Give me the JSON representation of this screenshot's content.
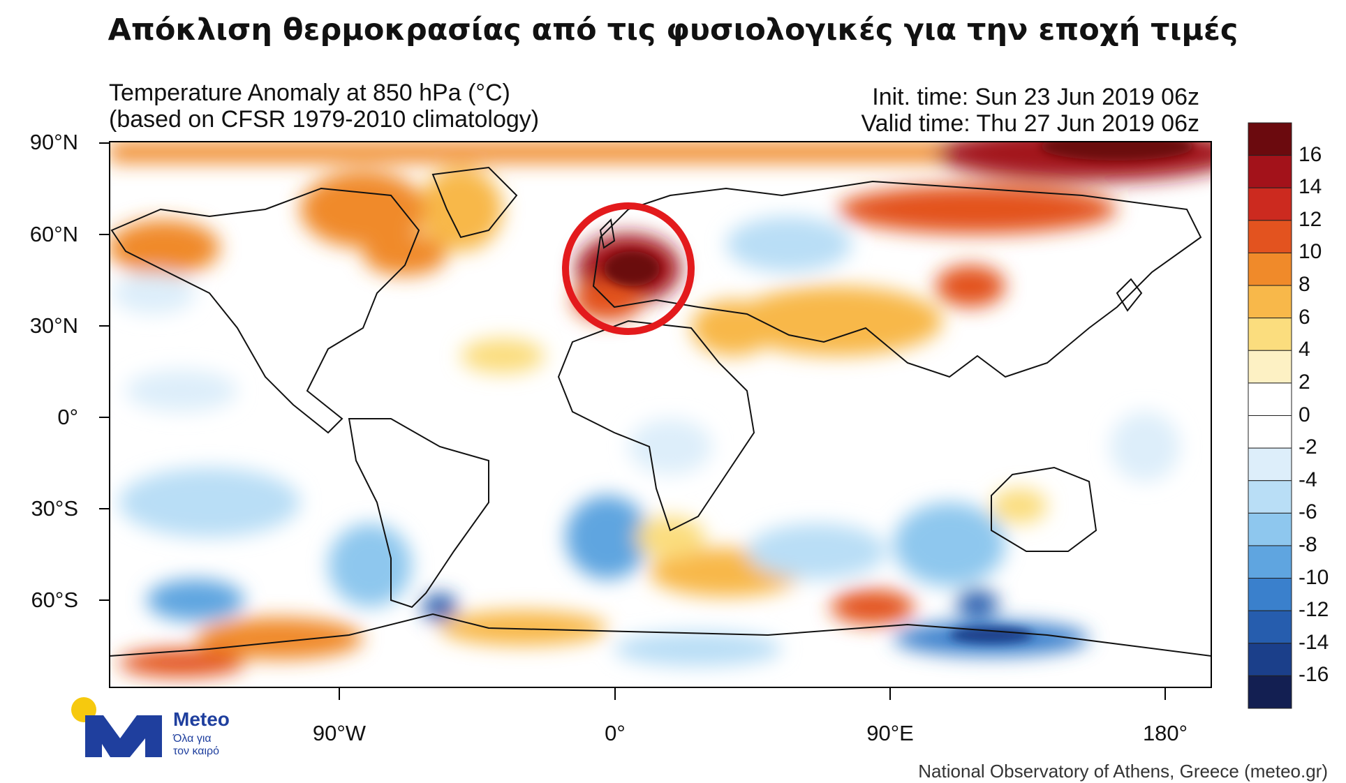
{
  "header": {
    "title": "Απόκλιση θερμοκρασίας από τις φυσιολογικές για την εποχή τιμές"
  },
  "map": {
    "title_line1": "Temperature Anomaly at 850 hPa (°C)",
    "title_line2": "(based on CFSR 1979-2010 climatology)",
    "init_time": "Init. time: Sun 23 Jun 2019 06z",
    "valid_time": "Valid time: Thu 27 Jun 2019 06z",
    "lat_labels": [
      "90°N",
      "60°N",
      "30°N",
      "0°",
      "30°S",
      "60°S"
    ],
    "lon_labels": [
      "90°W",
      "0°",
      "90°E",
      "180°"
    ],
    "highlight": "Western Europe heat anomaly"
  },
  "colorbar": {
    "labels": [
      "16",
      "14",
      "12",
      "10",
      "8",
      "6",
      "4",
      "2",
      "0",
      "-2",
      "-4",
      "-6",
      "-8",
      "-10",
      "-12",
      "-14",
      "-16"
    ],
    "colors": [
      "#6b0a0e",
      "#a3121a",
      "#cc2a1f",
      "#e3531f",
      "#f08a2a",
      "#f8b84a",
      "#fbdd7e",
      "#fdf1c4",
      "#ffffff",
      "#ffffff",
      "#ddeefa",
      "#b9def6",
      "#8ec7ee",
      "#5fa5e0",
      "#3a80cc",
      "#265dae",
      "#1b3f8a",
      "#131f52"
    ]
  },
  "branding": {
    "logo_name": "Meteo",
    "logo_tagline_1": "Όλα για",
    "logo_tagline_2": "τον καιρό",
    "credit": "National Observatory of Athens, Greece (meteo.gr)",
    "colors": {
      "logo_blue": "#1f3f9e",
      "logo_sun": "#f6c90e",
      "circle": "#e31a1c"
    }
  }
}
